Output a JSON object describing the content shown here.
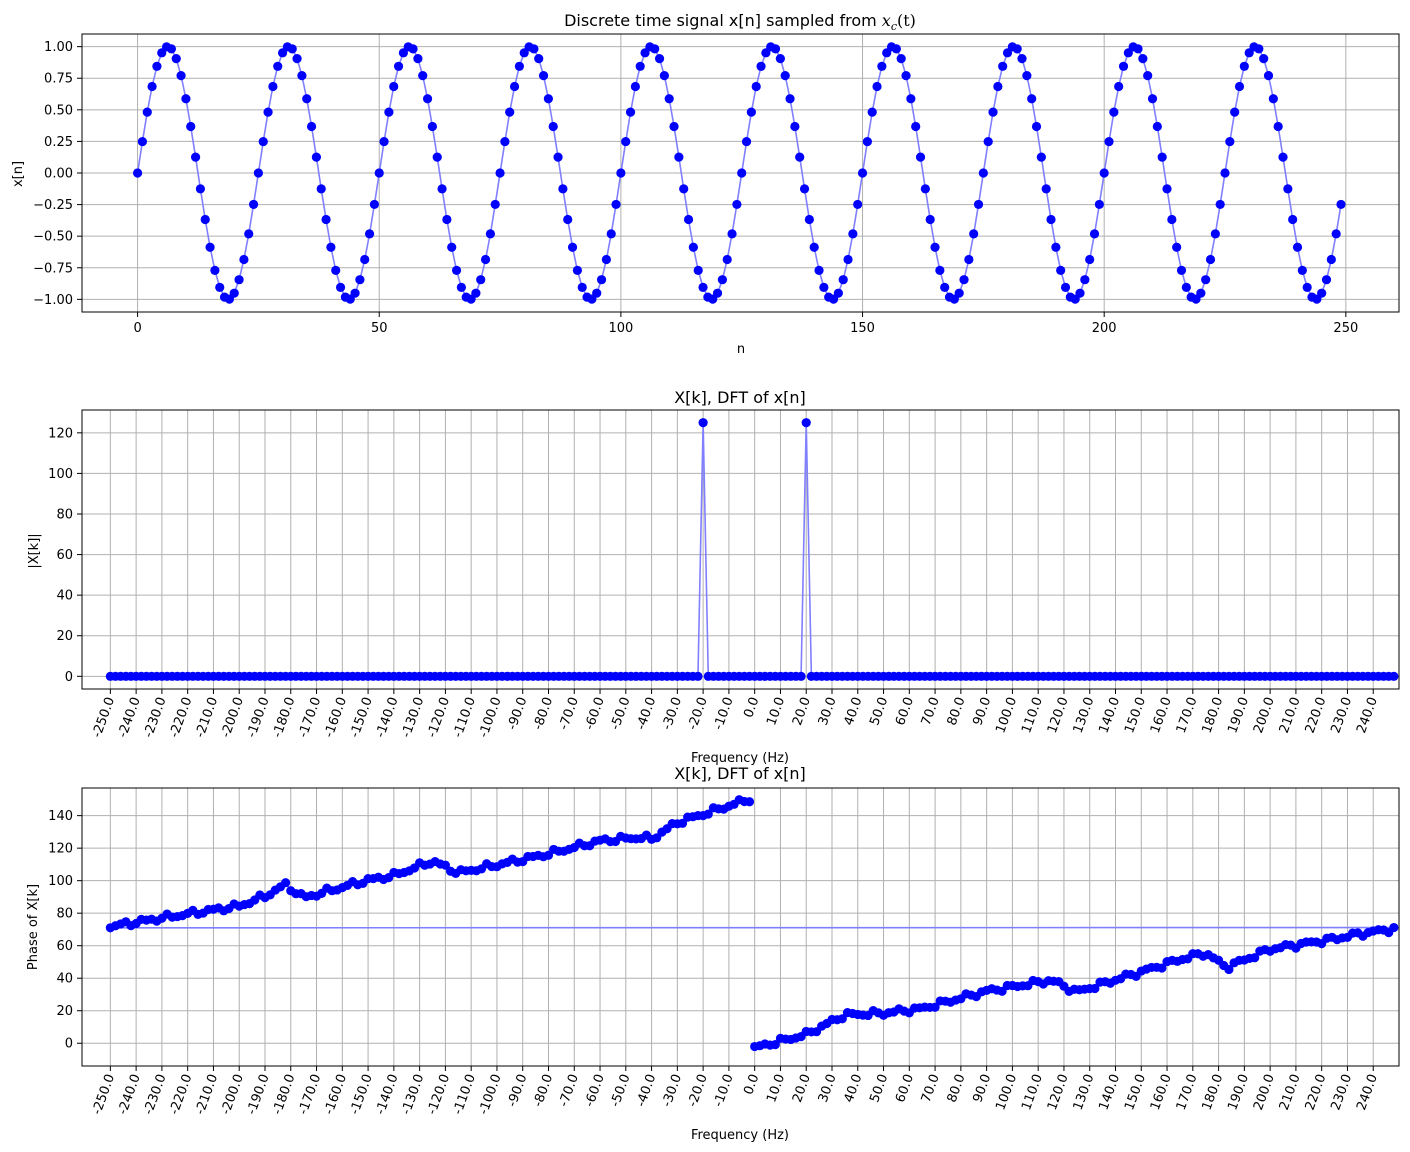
{
  "chart_data": [
    {
      "type": "scatter",
      "title": "Discrete time signal x[n] sampled from x_c(t)",
      "title_parts": {
        "prefix": "Discrete time signal x[n] sampled from ",
        "math_var": "x",
        "math_sub": "c",
        "math_arg": "(t)"
      },
      "xlabel": "n",
      "ylabel": "x[n]",
      "xlim": [
        -11.5,
        261
      ],
      "ylim": [
        -1.1,
        1.1
      ],
      "xticks": [
        0,
        50,
        100,
        150,
        200,
        250
      ],
      "yticks": [
        -1.0,
        -0.75,
        -0.5,
        -0.25,
        0.0,
        0.25,
        0.5,
        0.75,
        1.0
      ],
      "ytick_labels": [
        "−1.00",
        "−0.75",
        "−0.50",
        "−0.25",
        "0.00",
        "0.25",
        "0.50",
        "0.75",
        "1.00"
      ],
      "grid": true,
      "marker_color": "#0000ff",
      "line_color": "#7f7fff",
      "series": [
        {
          "formula": "x[n] = sin(2*pi*20*n/500)",
          "n_start": 0,
          "n_end": 249,
          "frequency_hz": 20,
          "sample_rate_hz": 500
        }
      ]
    },
    {
      "type": "scatter",
      "title": "X[k], DFT of x[n]",
      "xlabel": "Frequency (Hz)",
      "ylabel": "|X[k]|",
      "xlim": [
        -261,
        250
      ],
      "ylim": [
        -6.25,
        131.25
      ],
      "xticks": [
        -250,
        -240,
        -230,
        -220,
        -210,
        -200,
        -190,
        -180,
        -170,
        -160,
        -150,
        -140,
        -130,
        -120,
        -110,
        -100,
        -90,
        -80,
        -70,
        -60,
        -50,
        -40,
        -30,
        -20,
        -10,
        0,
        10,
        20,
        30,
        40,
        50,
        60,
        70,
        80,
        90,
        100,
        110,
        120,
        130,
        140,
        150,
        160,
        170,
        180,
        190,
        200,
        210,
        220,
        230,
        240
      ],
      "yticks": [
        0,
        20,
        40,
        60,
        80,
        100,
        120
      ],
      "grid": true,
      "marker_color": "#0000ff",
      "line_color": "#7f7fff",
      "series": [
        {
          "frequency_range": [
            -250,
            248
          ],
          "frequency_step": 2,
          "baseline_value": 0,
          "peaks": [
            {
              "frequency": -20,
              "value": 125
            },
            {
              "frequency": 20,
              "value": 125
            }
          ]
        }
      ]
    },
    {
      "type": "scatter",
      "title": "X[k], DFT of x[n]",
      "xlabel": "Frequency (Hz)",
      "ylabel": "Phase of X[k]",
      "xlim": [
        -261,
        250
      ],
      "ylim": [
        -14,
        157
      ],
      "xticks": [
        -250,
        -240,
        -230,
        -220,
        -210,
        -200,
        -190,
        -180,
        -170,
        -160,
        -150,
        -140,
        -130,
        -120,
        -110,
        -100,
        -90,
        -80,
        -70,
        -60,
        -50,
        -40,
        -30,
        -20,
        -10,
        0,
        10,
        20,
        30,
        40,
        50,
        60,
        70,
        80,
        90,
        100,
        110,
        120,
        130,
        140,
        150,
        160,
        170,
        180,
        190,
        200,
        210,
        220,
        230,
        240
      ],
      "yticks": [
        0,
        20,
        40,
        60,
        80,
        100,
        120,
        140
      ],
      "grid": true,
      "marker_color": "#0000ff",
      "line_color": "#7f7fff",
      "series": [
        {
          "frequency_step": 2,
          "segments": [
            {
              "frequency_range": [
                -250,
                -2
              ],
              "trend_points": [
                [
                  -250,
                  72
                ],
                [
                  -230,
                  77
                ],
                [
                  -200,
                  84
                ],
                [
                  -190,
                  90
                ],
                [
                  -182,
                  97
                ],
                [
                  -175,
                  89
                ],
                [
                  -150,
                  100
                ],
                [
                  -140,
                  103
                ],
                [
                  -125,
                  112
                ],
                [
                  -115,
                  105
                ],
                [
                  -100,
                  110
                ],
                [
                  -80,
                  117
                ],
                [
                  -60,
                  125
                ],
                [
                  -45,
                  127
                ],
                [
                  -40,
                  126
                ],
                [
                  -30,
                  136
                ],
                [
                  -20,
                  141
                ],
                [
                  -2,
                  150
                ]
              ]
            },
            {
              "frequency_range": [
                0,
                248
              ],
              "trend_points": [
                [
                  0,
                  -3
                ],
                [
                  20,
                  5
                ],
                [
                  35,
                  17
                ],
                [
                  50,
                  18
                ],
                [
                  65,
                  21
                ],
                [
                  90,
                  32
                ],
                [
                  115,
                  39
                ],
                [
                  125,
                  32
                ],
                [
                  145,
                  42
                ],
                [
                  165,
                  52
                ],
                [
                  175,
                  56
                ],
                [
                  183,
                  47
                ],
                [
                  200,
                  58
                ],
                [
                  225,
                  64
                ],
                [
                  235,
                  67
                ],
                [
                  248,
                  70
                ]
              ]
            }
          ]
        }
      ]
    }
  ]
}
